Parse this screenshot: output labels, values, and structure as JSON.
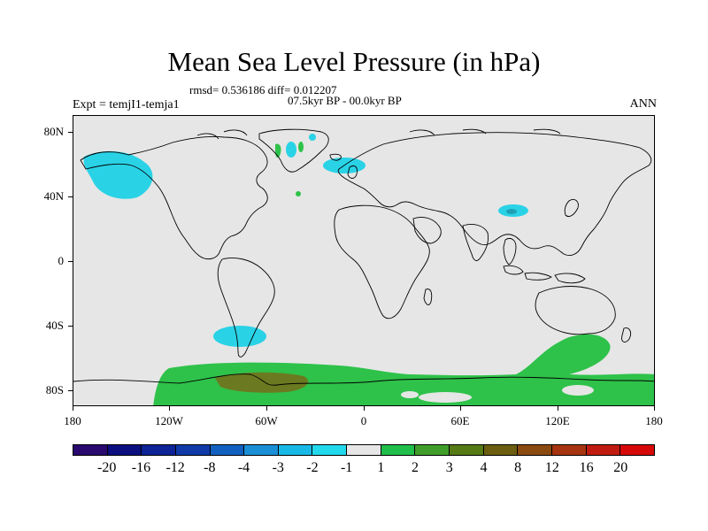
{
  "title": "Mean Sea Level Pressure (in hPa)",
  "stats": "rmsd= 0.536186 diff= 0.012207",
  "period": "07.5kyr BP - 00.0kyr BP",
  "experiment": "Expt = temjI1-temja1",
  "season": "ANN",
  "lat_labels": [
    "80N",
    "40N",
    "0",
    "40S",
    "80S"
  ],
  "lon_labels": [
    "180",
    "120W",
    "60W",
    "0",
    "60E",
    "120E",
    "180"
  ],
  "colorbar": {
    "labels": [
      "-20",
      "-16",
      "-12",
      "-8",
      "-4",
      "-3",
      "-2",
      "-1",
      "1",
      "2",
      "3",
      "4",
      "8",
      "12",
      "16",
      "20"
    ],
    "colors": [
      "#2a0a6e",
      "#0b0f80",
      "#0d2396",
      "#0f3aa8",
      "#1160bf",
      "#1a8fd6",
      "#18b9e6",
      "#22d8ec",
      "#e6e6e6",
      "#1fbf4a",
      "#3f9e2a",
      "#567a14",
      "#6b5e10",
      "#8b4a10",
      "#a63410",
      "#c01b10",
      "#d60808"
    ]
  },
  "anomaly_colors": {
    "cyan": "#2ad2e6",
    "green": "#2ec24a",
    "olive": "#6b7a20",
    "teal": "#1ea0b4"
  }
}
